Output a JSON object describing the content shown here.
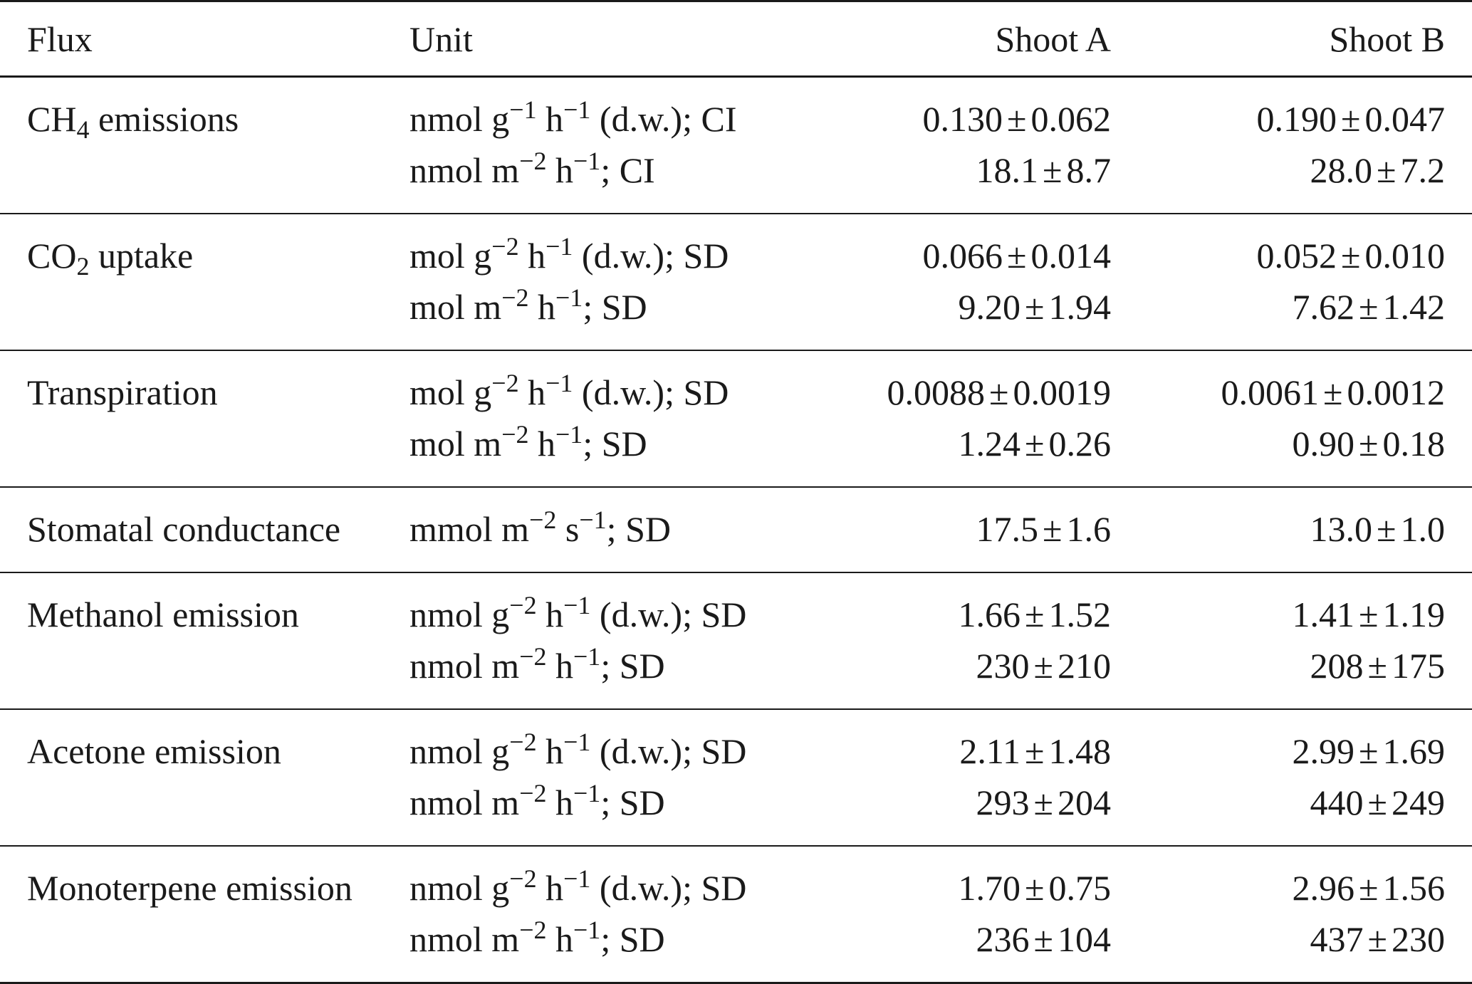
{
  "table": {
    "headers": {
      "flux": "Flux",
      "unit": "Unit",
      "shoot_a": "Shoot A",
      "shoot_b": "Shoot B"
    },
    "rows": [
      {
        "flux": "CH",
        "flux_sub": "4",
        "flux_rest": "emissions",
        "units": [
          {
            "pre": "nmol g",
            "e1": "−1",
            "mid": "h",
            "e2": "−1",
            "post": "(d.w.); CI"
          },
          {
            "pre": "nmol m",
            "e1": "−2",
            "mid": "h",
            "e2": "−1",
            "post": "; CI"
          }
        ],
        "shoot_a": [
          "0.130",
          "0.062",
          "18.1",
          "8.7"
        ],
        "shoot_b": [
          "0.190",
          "0.047",
          "28.0",
          "7.2"
        ]
      },
      {
        "flux": "CO",
        "flux_sub": "2",
        "flux_rest": "uptake",
        "units": [
          {
            "pre": "mol g",
            "e1": "−2",
            "mid": "h",
            "e2": "−1",
            "post": "(d.w.); SD"
          },
          {
            "pre": "mol m",
            "e1": "−2",
            "mid": "h",
            "e2": "−1",
            "post": "; SD"
          }
        ],
        "shoot_a": [
          "0.066",
          "0.014",
          "9.20",
          "1.94"
        ],
        "shoot_b": [
          "0.052",
          "0.010",
          "7.62",
          "1.42"
        ]
      },
      {
        "flux": "Transpiration",
        "units": [
          {
            "pre": "mol g",
            "e1": "−2",
            "mid": "h",
            "e2": "−1",
            "post": "(d.w.); SD"
          },
          {
            "pre": "mol m",
            "e1": "−2",
            "mid": "h",
            "e2": "−1",
            "post": "; SD"
          }
        ],
        "shoot_a": [
          "0.0088",
          "0.0019",
          "1.24",
          "0.26"
        ],
        "shoot_b": [
          "0.0061",
          "0.0012",
          "0.90",
          "0.18"
        ]
      },
      {
        "flux": "Stomatal conductance",
        "units": [
          {
            "pre": "mmol m",
            "e1": "−2",
            "mid": "s",
            "e2": "−1",
            "post": "; SD"
          }
        ],
        "shoot_a": [
          "17.5",
          "1.6"
        ],
        "shoot_b": [
          "13.0",
          "1.0"
        ]
      },
      {
        "flux": "Methanol emission",
        "units": [
          {
            "pre": "nmol g",
            "e1": "−2",
            "mid": "h",
            "e2": "−1",
            "post": "(d.w.); SD"
          },
          {
            "pre": "nmol m",
            "e1": "−2",
            "mid": "h",
            "e2": "−1",
            "post": "; SD"
          }
        ],
        "shoot_a": [
          "1.66",
          "1.52",
          "230",
          "210"
        ],
        "shoot_b": [
          "1.41",
          "1.19",
          "208",
          "175"
        ]
      },
      {
        "flux": "Acetone emission",
        "units": [
          {
            "pre": "nmol g",
            "e1": "−2",
            "mid": "h",
            "e2": "−1",
            "post": "(d.w.); SD"
          },
          {
            "pre": "nmol m",
            "e1": "−2",
            "mid": "h",
            "e2": "−1",
            "post": "; SD"
          }
        ],
        "shoot_a": [
          "2.11",
          "1.48",
          "293",
          "204"
        ],
        "shoot_b": [
          "2.99",
          "1.69",
          "440",
          "249"
        ]
      },
      {
        "flux": "Monoterpene emission",
        "units": [
          {
            "pre": "nmol g",
            "e1": "−2",
            "mid": "h",
            "e2": "−1",
            "post": "(d.w.); SD"
          },
          {
            "pre": "nmol m",
            "e1": "−2",
            "mid": "h",
            "e2": "−1",
            "post": "; SD"
          }
        ],
        "shoot_a": [
          "1.70",
          "0.75",
          "236",
          "104"
        ],
        "shoot_b": [
          "2.96",
          "1.56",
          "437",
          "230"
        ]
      }
    ],
    "pm_symbol": "±"
  }
}
